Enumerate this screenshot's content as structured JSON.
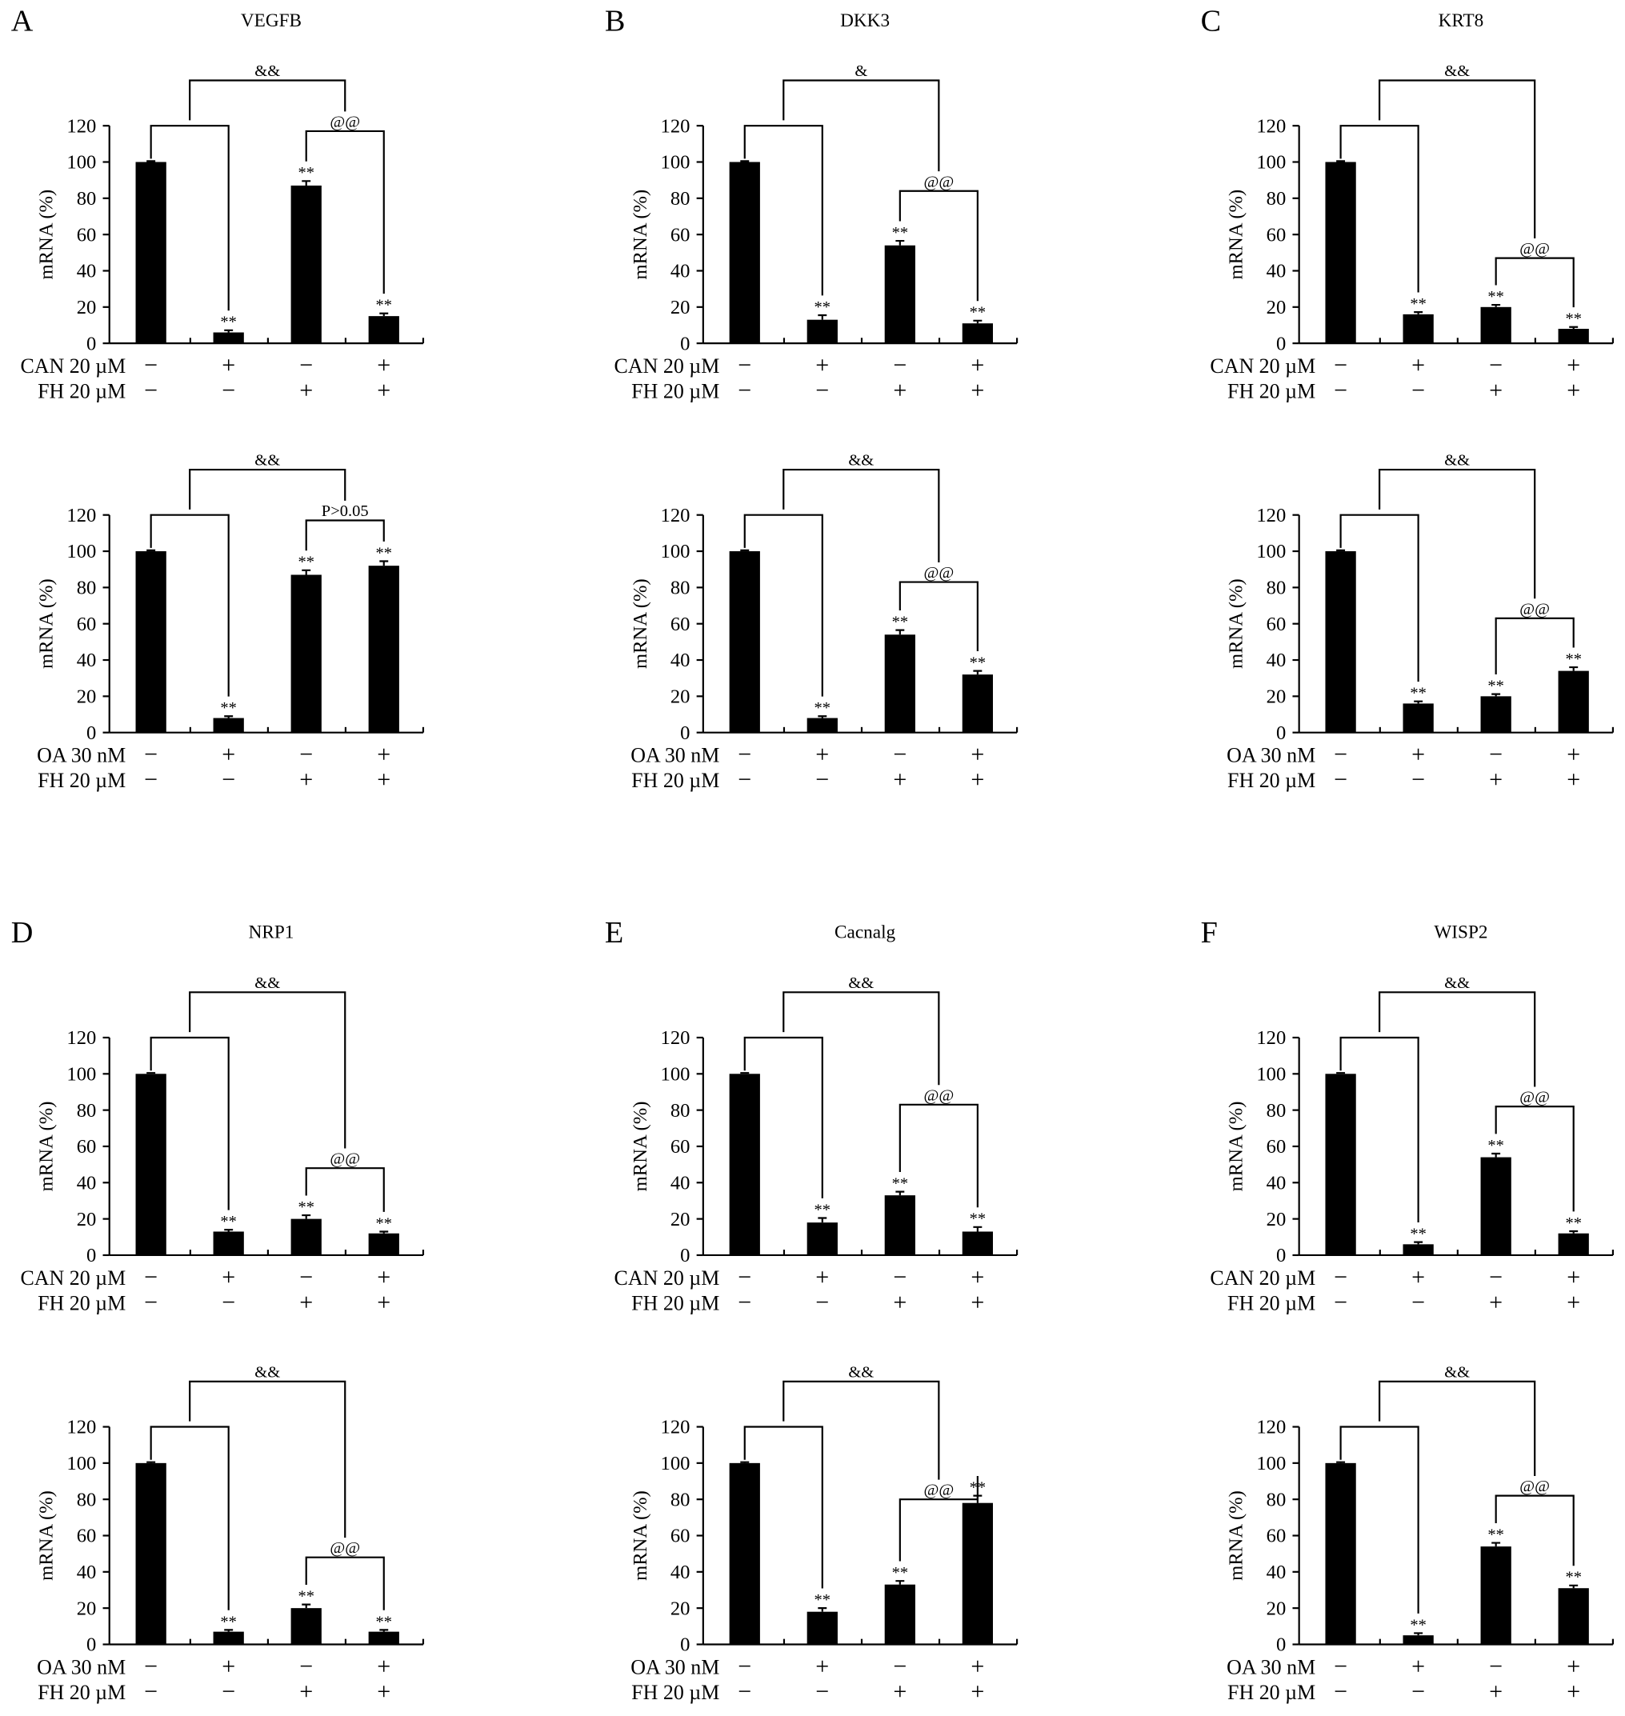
{
  "chart_data": [
    {
      "type": "bar",
      "panel": "A",
      "title": "VEGFB",
      "ylabel": "mRNA (%)",
      "ylim": [
        0,
        120
      ],
      "yticks": [
        0,
        20,
        40,
        60,
        80,
        100,
        120
      ],
      "treatments": [
        {
          "label": "CAN 20 µM",
          "signs": [
            "−",
            "+",
            "−",
            "+"
          ]
        },
        {
          "label": "FH 20 µM",
          "signs": [
            "−",
            "−",
            "+",
            "+"
          ]
        }
      ],
      "values": [
        100,
        6,
        87,
        15
      ],
      "errors": [
        0.5,
        1.2,
        2.5,
        1.5
      ],
      "bar_marks": [
        "",
        "**",
        "**",
        "**"
      ],
      "group_comparison": "&&",
      "fh_comparison": "@@"
    },
    {
      "type": "bar",
      "panel": "A",
      "title": "",
      "ylabel": "mRNA (%)",
      "ylim": [
        0,
        120
      ],
      "yticks": [
        0,
        20,
        40,
        60,
        80,
        100,
        120
      ],
      "treatments": [
        {
          "label": "OA 30 nM",
          "signs": [
            "−",
            "+",
            "−",
            "+"
          ]
        },
        {
          "label": "FH 20 µM",
          "signs": [
            "−",
            "−",
            "+",
            "+"
          ]
        }
      ],
      "values": [
        100,
        8,
        87,
        92
      ],
      "errors": [
        0.5,
        1,
        2.5,
        2.5
      ],
      "bar_marks": [
        "",
        "**",
        "**",
        "**"
      ],
      "group_comparison": "&&",
      "fh_comparison": "P>0.05"
    },
    {
      "type": "bar",
      "panel": "B",
      "title": "DKK3",
      "ylabel": "mRNA (%)",
      "ylim": [
        0,
        120
      ],
      "yticks": [
        0,
        20,
        40,
        60,
        80,
        100,
        120
      ],
      "treatments": [
        {
          "label": "CAN 20 µM",
          "signs": [
            "−",
            "+",
            "−",
            "+"
          ]
        },
        {
          "label": "FH 20 µM",
          "signs": [
            "−",
            "−",
            "+",
            "+"
          ]
        }
      ],
      "values": [
        100,
        13,
        54,
        11
      ],
      "errors": [
        0.5,
        2.5,
        2.5,
        1.5
      ],
      "bar_marks": [
        "",
        "**",
        "**",
        "**"
      ],
      "group_comparison": "&",
      "fh_comparison": "@@"
    },
    {
      "type": "bar",
      "panel": "B",
      "title": "",
      "ylabel": "mRNA (%)",
      "ylim": [
        0,
        120
      ],
      "yticks": [
        0,
        20,
        40,
        60,
        80,
        100,
        120
      ],
      "treatments": [
        {
          "label": "OA 30 nM",
          "signs": [
            "−",
            "+",
            "−",
            "+"
          ]
        },
        {
          "label": "FH 20 µM",
          "signs": [
            "−",
            "−",
            "+",
            "+"
          ]
        }
      ],
      "values": [
        100,
        8,
        54,
        32
      ],
      "errors": [
        0.5,
        1,
        2.5,
        2
      ],
      "bar_marks": [
        "",
        "**",
        "**",
        "**"
      ],
      "group_comparison": "&&",
      "fh_comparison": "@@"
    },
    {
      "type": "bar",
      "panel": "C",
      "title": "KRT8",
      "ylabel": "mRNA (%)",
      "ylim": [
        0,
        120
      ],
      "yticks": [
        0,
        20,
        40,
        60,
        80,
        100,
        120
      ],
      "treatments": [
        {
          "label": "CAN 20 µM",
          "signs": [
            "−",
            "+",
            "−",
            "+"
          ]
        },
        {
          "label": "FH 20 µM",
          "signs": [
            "−",
            "−",
            "+",
            "+"
          ]
        }
      ],
      "values": [
        100,
        16,
        20,
        8
      ],
      "errors": [
        0.5,
        1.2,
        1.2,
        1
      ],
      "bar_marks": [
        "",
        "**",
        "**",
        "**"
      ],
      "group_comparison": "&&",
      "fh_comparison": "@@"
    },
    {
      "type": "bar",
      "panel": "C",
      "title": "",
      "ylabel": "mRNA (%)",
      "ylim": [
        0,
        120
      ],
      "yticks": [
        0,
        20,
        40,
        60,
        80,
        100,
        120
      ],
      "treatments": [
        {
          "label": "OA 30 nM",
          "signs": [
            "−",
            "+",
            "−",
            "+"
          ]
        },
        {
          "label": "FH 20 µM",
          "signs": [
            "−",
            "−",
            "+",
            "+"
          ]
        }
      ],
      "values": [
        100,
        16,
        20,
        34
      ],
      "errors": [
        0.5,
        1.2,
        1.2,
        2
      ],
      "bar_marks": [
        "",
        "**",
        "**",
        "**"
      ],
      "group_comparison": "&&",
      "fh_comparison": "@@"
    },
    {
      "type": "bar",
      "panel": "D",
      "title": "NRP1",
      "ylabel": "mRNA (%)",
      "ylim": [
        0,
        120
      ],
      "yticks": [
        0,
        20,
        40,
        60,
        80,
        100,
        120
      ],
      "treatments": [
        {
          "label": "CAN 20 µM",
          "signs": [
            "−",
            "+",
            "−",
            "+"
          ]
        },
        {
          "label": "FH 20 µM",
          "signs": [
            "−",
            "−",
            "+",
            "+"
          ]
        }
      ],
      "values": [
        100,
        13,
        20,
        12
      ],
      "errors": [
        0.5,
        1,
        2,
        1
      ],
      "bar_marks": [
        "",
        "**",
        "**",
        "**"
      ],
      "group_comparison": "&&",
      "fh_comparison": "@@"
    },
    {
      "type": "bar",
      "panel": "D",
      "title": "",
      "ylabel": "mRNA (%)",
      "ylim": [
        0,
        120
      ],
      "yticks": [
        0,
        20,
        40,
        60,
        80,
        100,
        120
      ],
      "treatments": [
        {
          "label": "OA 30 nM",
          "signs": [
            "−",
            "+",
            "−",
            "+"
          ]
        },
        {
          "label": "FH 20 µM",
          "signs": [
            "−",
            "−",
            "+",
            "+"
          ]
        }
      ],
      "values": [
        100,
        7,
        20,
        7
      ],
      "errors": [
        0.5,
        1,
        2,
        1
      ],
      "bar_marks": [
        "",
        "**",
        "**",
        "**"
      ],
      "group_comparison": "&&",
      "fh_comparison": "@@"
    },
    {
      "type": "bar",
      "panel": "E",
      "title": "Cacnalg",
      "ylabel": "mRNA (%)",
      "ylim": [
        0,
        120
      ],
      "yticks": [
        0,
        20,
        40,
        60,
        80,
        100,
        120
      ],
      "treatments": [
        {
          "label": "CAN 20 µM",
          "signs": [
            "−",
            "+",
            "−",
            "+"
          ]
        },
        {
          "label": "FH 20 µM",
          "signs": [
            "−",
            "−",
            "+",
            "+"
          ]
        }
      ],
      "values": [
        100,
        18,
        33,
        13
      ],
      "errors": [
        0.5,
        2.5,
        2,
        2.5
      ],
      "bar_marks": [
        "",
        "**",
        "**",
        "**"
      ],
      "group_comparison": "&&",
      "fh_comparison": "@@"
    },
    {
      "type": "bar",
      "panel": "E",
      "title": "",
      "ylabel": "mRNA (%)",
      "ylim": [
        0,
        120
      ],
      "yticks": [
        0,
        20,
        40,
        60,
        80,
        100,
        120
      ],
      "treatments": [
        {
          "label": "OA 30 nM",
          "signs": [
            "−",
            "+",
            "−",
            "+"
          ]
        },
        {
          "label": "FH 20 µM",
          "signs": [
            "−",
            "−",
            "+",
            "+"
          ]
        }
      ],
      "values": [
        100,
        18,
        33,
        78
      ],
      "errors": [
        0.5,
        2,
        2,
        4
      ],
      "bar_marks": [
        "",
        "**",
        "**",
        "**"
      ],
      "group_comparison": "&&",
      "fh_comparison": "@@"
    },
    {
      "type": "bar",
      "panel": "F",
      "title": "WISP2",
      "ylabel": "mRNA (%)",
      "ylim": [
        0,
        120
      ],
      "yticks": [
        0,
        20,
        40,
        60,
        80,
        100,
        120
      ],
      "treatments": [
        {
          "label": "CAN 20 µM",
          "signs": [
            "−",
            "+",
            "−",
            "+"
          ]
        },
        {
          "label": "FH 20 µM",
          "signs": [
            "−",
            "−",
            "+",
            "+"
          ]
        }
      ],
      "values": [
        100,
        6,
        54,
        12
      ],
      "errors": [
        0.5,
        1.2,
        2,
        1.2
      ],
      "bar_marks": [
        "",
        "**",
        "**",
        "**"
      ],
      "group_comparison": "&&",
      "fh_comparison": "@@"
    },
    {
      "type": "bar",
      "panel": "F",
      "title": "",
      "ylabel": "mRNA (%)",
      "ylim": [
        0,
        120
      ],
      "yticks": [
        0,
        20,
        40,
        60,
        80,
        100,
        120
      ],
      "treatments": [
        {
          "label": "OA 30 nM",
          "signs": [
            "−",
            "+",
            "−",
            "+"
          ]
        },
        {
          "label": "FH 20 µM",
          "signs": [
            "−",
            "−",
            "+",
            "+"
          ]
        }
      ],
      "values": [
        100,
        5,
        54,
        31
      ],
      "errors": [
        0.5,
        1.2,
        2,
        1.5
      ],
      "bar_marks": [
        "",
        "**",
        "**",
        "**"
      ],
      "group_comparison": "&&",
      "fh_comparison": "@@"
    }
  ]
}
